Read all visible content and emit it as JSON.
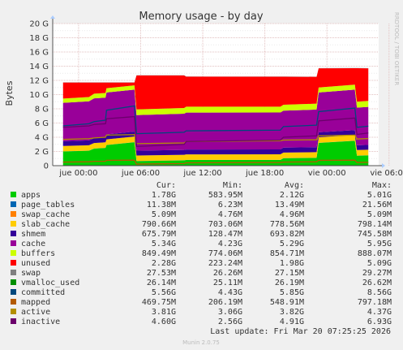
{
  "chart_data": {
    "type": "area",
    "title": "Memory usage - by day",
    "ylabel": "Bytes",
    "side_label": "RRDTOOL / TOBI OETIKER",
    "ylim": [
      0,
      20
    ],
    "y_unit": "G",
    "y_ticks": [
      "0",
      "2 G",
      "4 G",
      "6 G",
      "8 G",
      "10 G",
      "12 G",
      "14 G",
      "16 G",
      "18 G",
      "20 G"
    ],
    "grid": true,
    "x_ticks": [
      "jue 00:00",
      "jue 06:00",
      "jue 12:00",
      "jue 18:00",
      "vie 00:00",
      "vie 06:00"
    ],
    "x": [
      -1.5,
      1.0,
      1.5,
      2.6,
      2.7,
      5.4,
      5.6,
      10.2,
      10.4,
      19.5,
      19.8,
      23.0,
      23.2,
      26.7,
      26.9,
      28.0
    ],
    "table_headers": [
      "Cur:",
      "Min:",
      "Avg:",
      "Max:"
    ],
    "series": [
      {
        "name": "apps",
        "color": "#00cc00",
        "cur": "1.78G",
        "min": "583.95M",
        "avg": "2.12G",
        "max": "5.01G",
        "stacked": true,
        "values": [
          2.0,
          2.1,
          2.4,
          2.5,
          2.9,
          3.3,
          0.65,
          0.75,
          0.8,
          0.8,
          1.05,
          1.1,
          3.2,
          3.5,
          1.4,
          1.45
        ]
      },
      {
        "name": "page_tables",
        "color": "#0066b3",
        "cur": "11.38M",
        "min": "6.23M",
        "avg": "13.49M",
        "max": "21.56M",
        "stacked": true,
        "values": [
          0.012,
          0.012,
          0.012,
          0.012,
          0.012,
          0.012,
          0.01,
          0.01,
          0.01,
          0.01,
          0.01,
          0.01,
          0.012,
          0.012,
          0.011,
          0.011
        ]
      },
      {
        "name": "swap_cache",
        "color": "#ff8000",
        "cur": "5.09M",
        "min": "4.76M",
        "avg": "4.96M",
        "max": "5.09M",
        "stacked": true,
        "values": [
          0.005,
          0.005,
          0.005,
          0.005,
          0.005,
          0.005,
          0.005,
          0.005,
          0.005,
          0.005,
          0.005,
          0.005,
          0.005,
          0.005,
          0.005,
          0.005
        ]
      },
      {
        "name": "slab_cache",
        "color": "#ffcc00",
        "cur": "790.66M",
        "min": "703.06M",
        "avg": "778.56M",
        "max": "798.14M",
        "stacked": true,
        "values": [
          0.75,
          0.76,
          0.77,
          0.77,
          0.78,
          0.78,
          0.77,
          0.77,
          0.77,
          0.78,
          0.78,
          0.78,
          0.78,
          0.78,
          0.78,
          0.78
        ]
      },
      {
        "name": "shmem",
        "color": "#330099",
        "cur": "675.79M",
        "min": "128.47M",
        "avg": "693.82M",
        "max": "745.58M",
        "stacked": true,
        "values": [
          0.68,
          0.68,
          0.69,
          0.69,
          0.7,
          0.7,
          0.68,
          0.68,
          0.69,
          0.69,
          0.7,
          0.7,
          0.7,
          0.7,
          0.68,
          0.68
        ]
      },
      {
        "name": "cache",
        "color": "#990099",
        "cur": "5.34G",
        "min": "4.23G",
        "avg": "5.29G",
        "max": "5.95G",
        "stacked": true,
        "values": [
          5.4,
          5.5,
          5.6,
          5.6,
          5.9,
          5.9,
          5.0,
          5.1,
          5.2,
          5.2,
          5.2,
          5.3,
          5.6,
          5.7,
          5.3,
          5.34
        ]
      },
      {
        "name": "buffers",
        "color": "#ccff00",
        "cur": "849.49M",
        "min": "774.06M",
        "avg": "854.71M",
        "max": "888.07M",
        "stacked": true,
        "values": [
          0.6,
          0.6,
          0.65,
          0.65,
          0.6,
          0.6,
          0.8,
          0.8,
          0.82,
          0.82,
          0.83,
          0.83,
          0.7,
          0.7,
          0.83,
          0.85
        ]
      },
      {
        "name": "unused",
        "color": "#ff0000",
        "cur": "2.28G",
        "min": "223.24M",
        "avg": "1.98G",
        "max": "5.09G",
        "stacked": true,
        "values": [
          2.26,
          2.05,
          1.58,
          1.47,
          0.81,
          0.41,
          4.79,
          4.59,
          4.23,
          4.21,
          3.94,
          3.78,
          2.71,
          2.32,
          4.71,
          4.58
        ]
      },
      {
        "name": "swap",
        "color": "#808080",
        "cur": "27.53M",
        "min": "26.26M",
        "avg": "27.15M",
        "max": "29.27M",
        "stacked": true,
        "values": [
          0.027,
          0.027,
          0.027,
          0.027,
          0.027,
          0.027,
          0.027,
          0.027,
          0.027,
          0.027,
          0.027,
          0.027,
          0.027,
          0.027,
          0.027,
          0.027
        ]
      },
      {
        "name": "vmalloc_used",
        "color": "#008f00",
        "cur": "26.14M",
        "min": "25.11M",
        "avg": "26.19M",
        "max": "26.62M",
        "stacked": false,
        "values": [
          0.026,
          0.026,
          0.026,
          0.026,
          0.026,
          0.026,
          0.025,
          0.025,
          0.026,
          0.026,
          0.026,
          0.026,
          0.026,
          0.026,
          0.026,
          0.026
        ]
      },
      {
        "name": "committed",
        "color": "#00487d",
        "cur": "5.56G",
        "min": "4.43G",
        "avg": "5.85G",
        "max": "8.56G",
        "stacked": false,
        "values": [
          5.6,
          5.9,
          6.2,
          6.4,
          7.8,
          8.4,
          4.5,
          4.7,
          4.9,
          5.0,
          5.5,
          5.7,
          7.6,
          8.1,
          5.4,
          5.56
        ]
      },
      {
        "name": "mapped",
        "color": "#b35a00",
        "cur": "469.75M",
        "min": "206.19M",
        "avg": "548.91M",
        "max": "797.18M",
        "stacked": false,
        "values": [
          0.5,
          0.55,
          0.6,
          0.62,
          0.75,
          0.78,
          0.22,
          0.3,
          0.4,
          0.45,
          0.5,
          0.55,
          0.75,
          0.78,
          0.45,
          0.47
        ]
      },
      {
        "name": "active",
        "color": "#b38f00",
        "cur": "3.81G",
        "min": "3.06G",
        "avg": "3.82G",
        "max": "4.37G",
        "stacked": false,
        "values": [
          3.7,
          3.8,
          3.9,
          4.0,
          4.3,
          4.37,
          3.1,
          3.2,
          3.4,
          3.5,
          3.6,
          3.65,
          4.2,
          4.3,
          3.75,
          3.81
        ]
      },
      {
        "name": "inactive",
        "color": "#6b006b",
        "cur": "4.60G",
        "min": "2.56G",
        "avg": "4.91G",
        "max": "6.93G",
        "stacked": false,
        "values": [
          5.4,
          5.6,
          5.8,
          5.9,
          6.6,
          6.9,
          2.7,
          3.0,
          3.4,
          3.6,
          4.0,
          4.2,
          6.3,
          6.7,
          4.4,
          4.6
        ]
      }
    ]
  },
  "footer": {
    "last_update": "Last update: Fri Mar 20 07:25:25 2026",
    "version": "Munin 2.0.75"
  }
}
